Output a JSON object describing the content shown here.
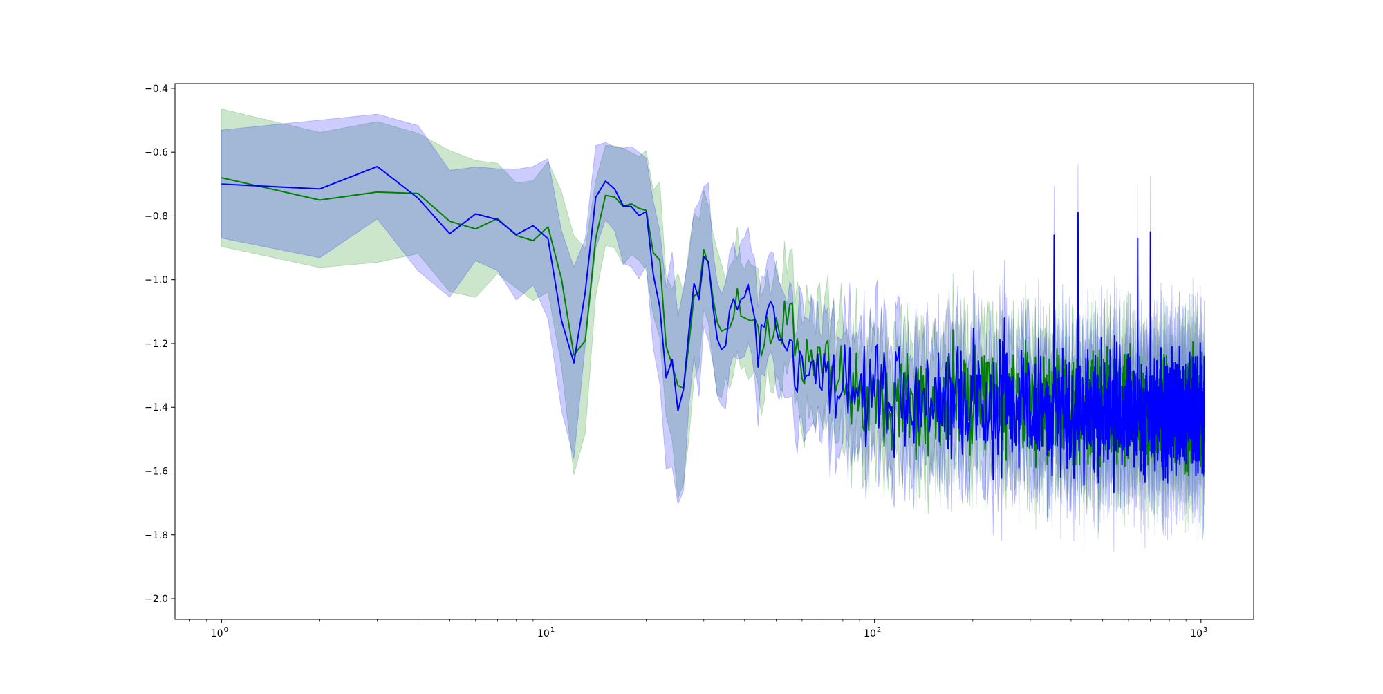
{
  "chart_data": {
    "type": "line",
    "title": "",
    "xlabel": "",
    "ylabel": "",
    "xscale": "log",
    "xlim": [
      0.72,
      1450
    ],
    "ylim": [
      -2.065,
      -0.385
    ],
    "grid": false,
    "legend": "none",
    "x_range": [
      1,
      1024
    ],
    "x_ticks": [
      {
        "value": 1,
        "base": "10",
        "exp": "0"
      },
      {
        "value": 10,
        "base": "10",
        "exp": "1"
      },
      {
        "value": 100,
        "base": "10",
        "exp": "2"
      },
      {
        "value": 1000,
        "base": "10",
        "exp": "3"
      }
    ],
    "y_ticks": [
      {
        "value": -0.4,
        "label": "−0.4"
      },
      {
        "value": -0.6,
        "label": "−0.6"
      },
      {
        "value": -0.8,
        "label": "−0.8"
      },
      {
        "value": -1.0,
        "label": "−1.0"
      },
      {
        "value": -1.2,
        "label": "−1.2"
      },
      {
        "value": -1.4,
        "label": "−1.4"
      },
      {
        "value": -1.6,
        "label": "−1.6"
      },
      {
        "value": -1.8,
        "label": "−1.8"
      },
      {
        "value": -2.0,
        "label": "−2.0"
      }
    ],
    "series": [
      {
        "color": "#008000",
        "band_color": "#008000",
        "band_opacity": 0.2,
        "keypoints": [
          [
            1,
            -0.68,
            0.21
          ],
          [
            2,
            -0.75,
            0.21
          ],
          [
            3,
            -0.725,
            0.2
          ],
          [
            4,
            -0.73,
            0.21
          ],
          [
            5,
            -0.815,
            0.23
          ],
          [
            6,
            -0.84,
            0.21
          ],
          [
            7,
            -0.81,
            0.16
          ],
          [
            8,
            -0.86,
            0.19
          ],
          [
            9,
            -0.88,
            0.21
          ],
          [
            10,
            -0.835,
            0.2
          ],
          [
            11,
            -1.0,
            0.25
          ],
          [
            12,
            -1.23,
            0.34
          ],
          [
            13,
            -1.19,
            0.29
          ],
          [
            14,
            -0.87,
            0.21
          ],
          [
            15,
            -0.74,
            0.16
          ],
          [
            16,
            -0.735,
            0.15
          ],
          [
            17,
            -0.77,
            0.18
          ],
          [
            18,
            -0.76,
            0.18
          ],
          [
            19,
            -0.775,
            0.17
          ],
          [
            20,
            -0.79,
            0.18
          ],
          [
            21,
            -0.92,
            0.2
          ],
          [
            22,
            -0.93,
            0.22
          ],
          [
            23,
            -1.2,
            0.25
          ],
          [
            24,
            -1.27,
            0.27
          ],
          [
            25,
            -1.34,
            0.31
          ],
          [
            26,
            -1.345,
            0.3
          ],
          [
            27,
            -1.2,
            0.26
          ],
          [
            28,
            -1.04,
            0.25
          ],
          [
            29,
            -1.06,
            0.24
          ],
          [
            30,
            -0.905,
            0.2
          ],
          [
            31,
            -0.96,
            0.2
          ],
          [
            33,
            -1.13,
            0.2
          ],
          [
            35,
            -1.17,
            0.18
          ],
          [
            38,
            -1.07,
            0.17
          ],
          [
            42,
            -1.12,
            0.18
          ],
          [
            46,
            -1.18,
            0.17
          ],
          [
            50,
            -1.16,
            0.17
          ],
          [
            55,
            -1.12,
            0.17
          ],
          [
            60,
            -1.24,
            0.18
          ],
          [
            70,
            -1.25,
            0.18
          ],
          [
            80,
            -1.3,
            0.18
          ],
          [
            100,
            -1.35,
            0.18
          ],
          [
            150,
            -1.37,
            0.18
          ],
          [
            300,
            -1.4,
            0.18
          ],
          [
            600,
            -1.41,
            0.18
          ],
          [
            1024,
            -1.42,
            0.18
          ]
        ],
        "noise": [
          [
            1,
            0
          ],
          [
            25,
            0.01
          ],
          [
            40,
            0.035
          ],
          [
            60,
            0.07
          ],
          [
            80,
            0.1
          ],
          [
            150,
            0.12
          ],
          [
            1024,
            0.12
          ]
        ],
        "seed": 11
      },
      {
        "color": "#0000ff",
        "band_color": "#0000ff",
        "band_opacity": 0.2,
        "keypoints": [
          [
            1,
            -0.7,
            0.18
          ],
          [
            2,
            -0.715,
            0.19
          ],
          [
            3,
            -0.645,
            0.18
          ],
          [
            4,
            -0.745,
            0.23
          ],
          [
            5,
            -0.855,
            0.19
          ],
          [
            6,
            -0.795,
            0.16
          ],
          [
            7,
            -0.81,
            0.15
          ],
          [
            8,
            -0.86,
            0.19
          ],
          [
            9,
            -0.835,
            0.17
          ],
          [
            10,
            -0.87,
            0.25
          ],
          [
            11,
            -1.135,
            0.27
          ],
          [
            12,
            -1.26,
            0.31
          ],
          [
            13,
            -1.04,
            0.15
          ],
          [
            14,
            -0.74,
            0.16
          ],
          [
            15,
            -0.69,
            0.14
          ],
          [
            16,
            -0.71,
            0.15
          ],
          [
            17,
            -0.775,
            0.2
          ],
          [
            18,
            -0.77,
            0.2
          ],
          [
            19,
            -0.8,
            0.18
          ],
          [
            20,
            -0.78,
            0.16
          ],
          [
            21,
            -0.98,
            0.25
          ],
          [
            22,
            -1.09,
            0.28
          ],
          [
            23,
            -1.305,
            0.25
          ],
          [
            24,
            -1.26,
            0.31
          ],
          [
            25,
            -1.405,
            0.27
          ],
          [
            26,
            -1.35,
            0.3
          ],
          [
            27,
            -1.16,
            0.22
          ],
          [
            28,
            -1.02,
            0.26
          ],
          [
            29,
            -1.055,
            0.31
          ],
          [
            30,
            -0.895,
            0.2
          ],
          [
            31,
            -0.94,
            0.22
          ],
          [
            33,
            -1.19,
            0.18
          ],
          [
            35,
            -1.19,
            0.18
          ],
          [
            37,
            -1.04,
            0.18
          ],
          [
            39,
            -1.08,
            0.17
          ],
          [
            41,
            -1.03,
            0.17
          ],
          [
            44,
            -1.2,
            0.17
          ],
          [
            48,
            -1.06,
            0.17
          ],
          [
            52,
            -1.2,
            0.17
          ],
          [
            58,
            -1.27,
            0.18
          ],
          [
            70,
            -1.28,
            0.18
          ],
          [
            90,
            -1.35,
            0.18
          ],
          [
            150,
            -1.38,
            0.18
          ],
          [
            300,
            -1.4,
            0.18
          ],
          [
            600,
            -1.41,
            0.18
          ],
          [
            1024,
            -1.43,
            0.18
          ]
        ],
        "noise": [
          [
            1,
            0
          ],
          [
            25,
            0.01
          ],
          [
            40,
            0.04
          ],
          [
            60,
            0.08
          ],
          [
            80,
            0.11
          ],
          [
            150,
            0.13
          ],
          [
            1024,
            0.13
          ]
        ],
        "spikes": [
          [
            420,
            -0.79
          ],
          [
            355,
            -0.86
          ],
          [
            700,
            -0.85
          ],
          [
            640,
            -0.87
          ],
          [
            250,
            -1.12
          ]
        ],
        "seed": 23
      }
    ]
  }
}
